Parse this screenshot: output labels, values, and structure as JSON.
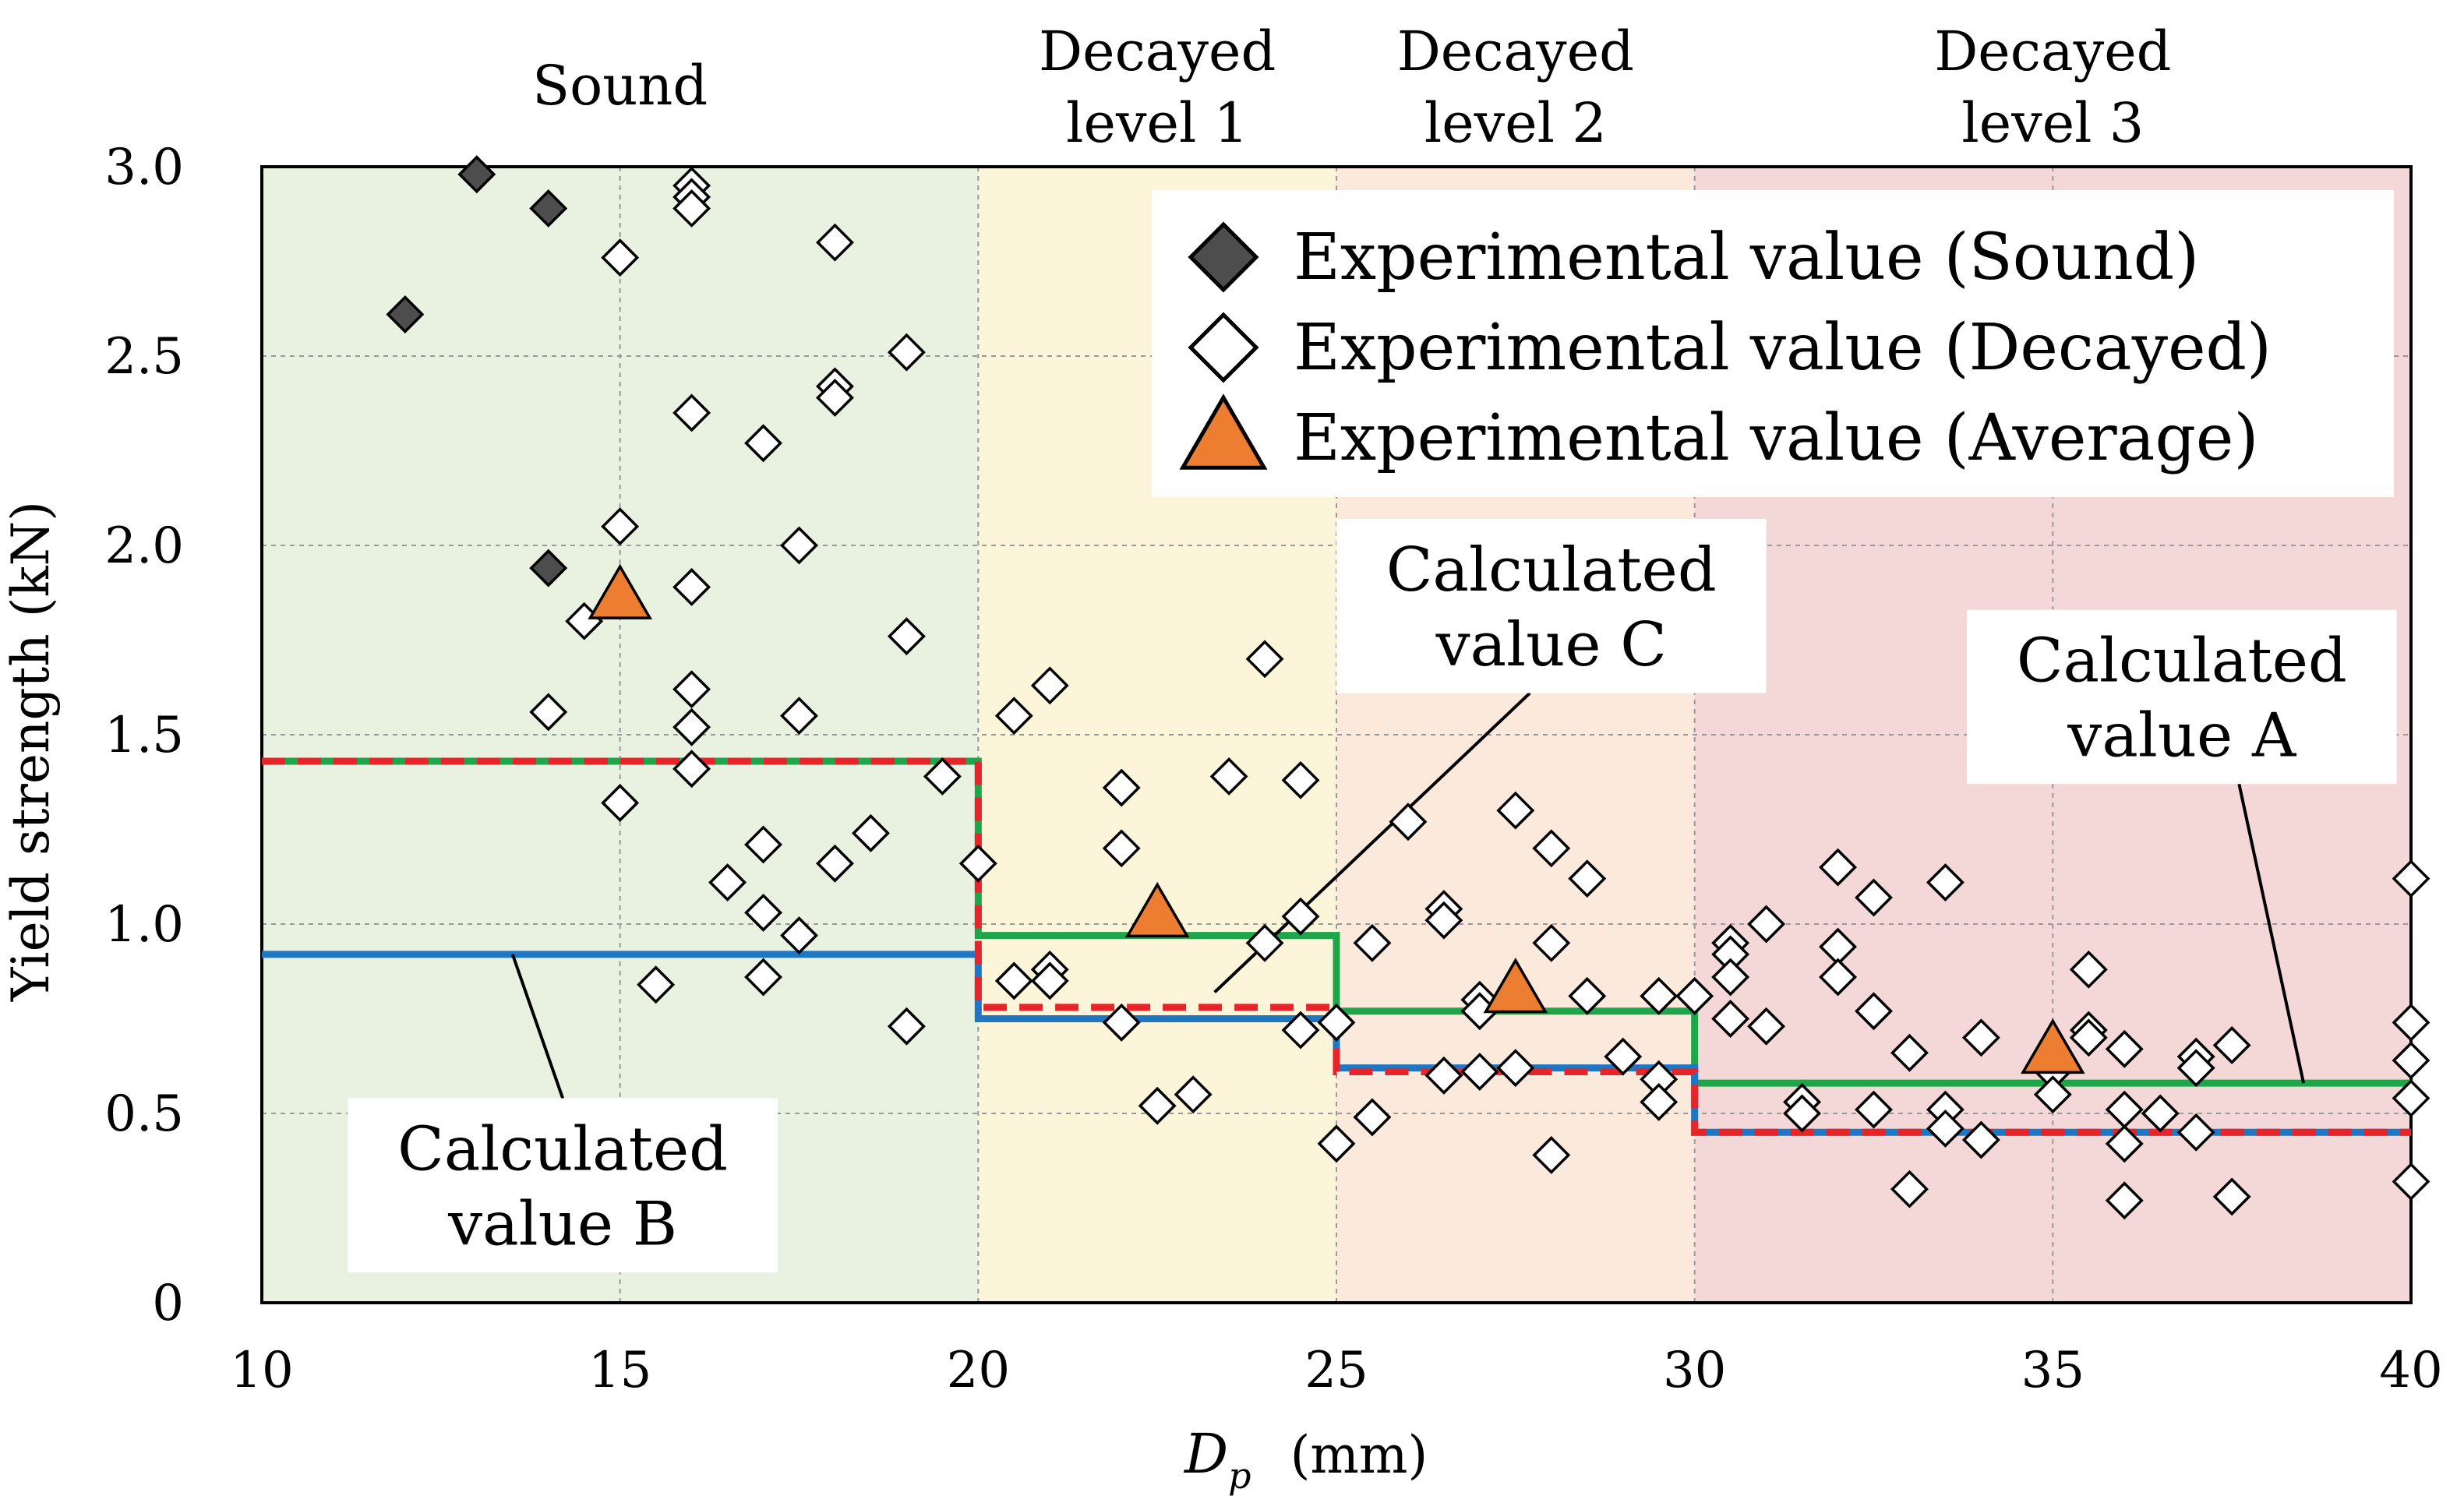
{
  "chart_data": {
    "type": "scatter",
    "xlabel_main": "D",
    "xlabel_sub": "p",
    "xlabel_unit": "(mm)",
    "ylabel": "Yield strength (kN)",
    "xlim": [
      10,
      40
    ],
    "ylim": [
      0,
      3.0
    ],
    "x_ticks": [
      "10",
      "15",
      "20",
      "25",
      "30",
      "35",
      "40"
    ],
    "y_ticks": [
      "0",
      "0.5",
      "1.0",
      "1.5",
      "2.0",
      "2.5",
      "3.0"
    ],
    "regions": [
      {
        "from": 10,
        "to": 20,
        "label": [
          "Sound"
        ],
        "color": "#e9f1e1"
      },
      {
        "from": 20,
        "to": 25,
        "label": [
          "Decayed",
          "level 1"
        ],
        "color": "#fdf5d9"
      },
      {
        "from": 25,
        "to": 30,
        "label": [
          "Decayed",
          "level 2"
        ],
        "color": "#fbe9dc"
      },
      {
        "from": 30,
        "to": 40,
        "label": [
          "Decayed",
          "level 3"
        ],
        "color": "#f4d8d8"
      }
    ],
    "legend": [
      {
        "name": "Experimental value (Sound)",
        "marker": "diamond-filled"
      },
      {
        "name": "Experimental value (Decayed)",
        "marker": "diamond-open"
      },
      {
        "name": "Experimental value (Average)",
        "marker": "triangle"
      }
    ],
    "series_sound": [
      {
        "x": 12,
        "y": 2.61
      },
      {
        "x": 13,
        "y": 2.98
      },
      {
        "x": 14,
        "y": 2.89
      },
      {
        "x": 14,
        "y": 1.94
      }
    ],
    "series_decayed": [
      {
        "x": 14,
        "y": 1.56
      },
      {
        "x": 14.5,
        "y": 1.8
      },
      {
        "x": 15,
        "y": 2.76
      },
      {
        "x": 15,
        "y": 2.05
      },
      {
        "x": 15,
        "y": 1.32
      },
      {
        "x": 15.5,
        "y": 0.84
      },
      {
        "x": 16,
        "y": 2.95
      },
      {
        "x": 16,
        "y": 2.92
      },
      {
        "x": 16,
        "y": 2.89
      },
      {
        "x": 16,
        "y": 2.35
      },
      {
        "x": 16,
        "y": 1.89
      },
      {
        "x": 16,
        "y": 1.62
      },
      {
        "x": 16,
        "y": 1.52
      },
      {
        "x": 16,
        "y": 1.41
      },
      {
        "x": 16.5,
        "y": 1.11
      },
      {
        "x": 17,
        "y": 2.27
      },
      {
        "x": 17,
        "y": 1.21
      },
      {
        "x": 17,
        "y": 1.03
      },
      {
        "x": 17,
        "y": 0.86
      },
      {
        "x": 17.5,
        "y": 2.0
      },
      {
        "x": 17.5,
        "y": 1.55
      },
      {
        "x": 17.5,
        "y": 0.97
      },
      {
        "x": 18,
        "y": 2.8
      },
      {
        "x": 18,
        "y": 2.42
      },
      {
        "x": 18,
        "y": 2.39
      },
      {
        "x": 18,
        "y": 1.16
      },
      {
        "x": 18.5,
        "y": 1.24
      },
      {
        "x": 19,
        "y": 2.51
      },
      {
        "x": 19,
        "y": 1.76
      },
      {
        "x": 19,
        "y": 0.73
      },
      {
        "x": 19.5,
        "y": 1.39
      },
      {
        "x": 20,
        "y": 1.16
      },
      {
        "x": 20.5,
        "y": 1.55
      },
      {
        "x": 20.5,
        "y": 0.85
      },
      {
        "x": 21,
        "y": 1.63
      },
      {
        "x": 21,
        "y": 0.88
      },
      {
        "x": 21,
        "y": 0.85
      },
      {
        "x": 22,
        "y": 1.36
      },
      {
        "x": 22,
        "y": 1.2
      },
      {
        "x": 22,
        "y": 0.74
      },
      {
        "x": 22.5,
        "y": 0.52
      },
      {
        "x": 23,
        "y": 0.55
      },
      {
        "x": 23.5,
        "y": 1.39
      },
      {
        "x": 24,
        "y": 1.7
      },
      {
        "x": 24,
        "y": 0.95
      },
      {
        "x": 24.5,
        "y": 1.38
      },
      {
        "x": 24.5,
        "y": 1.02
      },
      {
        "x": 24.5,
        "y": 0.72
      },
      {
        "x": 25,
        "y": 0.74
      },
      {
        "x": 25,
        "y": 0.42
      },
      {
        "x": 25.5,
        "y": 0.95
      },
      {
        "x": 25.5,
        "y": 0.49
      },
      {
        "x": 26,
        "y": 1.27
      },
      {
        "x": 26.5,
        "y": 1.04
      },
      {
        "x": 26.5,
        "y": 1.01
      },
      {
        "x": 26.5,
        "y": 0.6
      },
      {
        "x": 27,
        "y": 0.8
      },
      {
        "x": 27,
        "y": 0.77
      },
      {
        "x": 27,
        "y": 0.61
      },
      {
        "x": 27.5,
        "y": 1.3
      },
      {
        "x": 27.5,
        "y": 0.62
      },
      {
        "x": 28,
        "y": 1.2
      },
      {
        "x": 28,
        "y": 0.95
      },
      {
        "x": 28,
        "y": 0.39
      },
      {
        "x": 28.5,
        "y": 1.12
      },
      {
        "x": 28.5,
        "y": 0.81
      },
      {
        "x": 29,
        "y": 0.65
      },
      {
        "x": 29.5,
        "y": 0.81
      },
      {
        "x": 29.5,
        "y": 0.59
      },
      {
        "x": 29.5,
        "y": 0.53
      },
      {
        "x": 30,
        "y": 0.81
      },
      {
        "x": 30.5,
        "y": 0.95
      },
      {
        "x": 30.5,
        "y": 0.92
      },
      {
        "x": 30.5,
        "y": 0.86
      },
      {
        "x": 30.5,
        "y": 0.75
      },
      {
        "x": 31,
        "y": 1.0
      },
      {
        "x": 31,
        "y": 0.73
      },
      {
        "x": 31.5,
        "y": 0.53
      },
      {
        "x": 31.5,
        "y": 0.5
      },
      {
        "x": 32,
        "y": 1.15
      },
      {
        "x": 32,
        "y": 0.94
      },
      {
        "x": 32,
        "y": 0.86
      },
      {
        "x": 32.5,
        "y": 1.07
      },
      {
        "x": 32.5,
        "y": 0.77
      },
      {
        "x": 32.5,
        "y": 0.51
      },
      {
        "x": 33,
        "y": 0.66
      },
      {
        "x": 33,
        "y": 0.3
      },
      {
        "x": 33.5,
        "y": 1.11
      },
      {
        "x": 33.5,
        "y": 0.51
      },
      {
        "x": 33.5,
        "y": 0.46
      },
      {
        "x": 34,
        "y": 0.7
      },
      {
        "x": 34,
        "y": 0.43
      },
      {
        "x": 35,
        "y": 0.61
      },
      {
        "x": 35,
        "y": 0.55
      },
      {
        "x": 35.5,
        "y": 0.88
      },
      {
        "x": 35.5,
        "y": 0.72
      },
      {
        "x": 35.5,
        "y": 0.7
      },
      {
        "x": 36,
        "y": 0.67
      },
      {
        "x": 36,
        "y": 0.51
      },
      {
        "x": 36,
        "y": 0.42
      },
      {
        "x": 36,
        "y": 0.27
      },
      {
        "x": 36.5,
        "y": 0.5
      },
      {
        "x": 37,
        "y": 0.65
      },
      {
        "x": 37,
        "y": 0.62
      },
      {
        "x": 37,
        "y": 0.45
      },
      {
        "x": 37.5,
        "y": 0.68
      },
      {
        "x": 37.5,
        "y": 0.28
      },
      {
        "x": 40,
        "y": 1.12
      },
      {
        "x": 40,
        "y": 0.74
      },
      {
        "x": 40,
        "y": 0.64
      },
      {
        "x": 40,
        "y": 0.54
      },
      {
        "x": 40,
        "y": 0.32
      }
    ],
    "series_average": [
      {
        "x": 15,
        "y": 1.86
      },
      {
        "x": 22.5,
        "y": 1.02
      },
      {
        "x": 27.5,
        "y": 0.82
      },
      {
        "x": 35,
        "y": 0.66
      }
    ],
    "calculated_lines": [
      {
        "name": "Calculated value A",
        "color": "#1fa64a",
        "dash": false,
        "steps": [
          {
            "from": 10,
            "to": 20,
            "y": 1.43
          },
          {
            "from": 20,
            "to": 25,
            "y": 0.97
          },
          {
            "from": 25,
            "to": 30,
            "y": 0.77
          },
          {
            "from": 30,
            "to": 40,
            "y": 0.58
          }
        ]
      },
      {
        "name": "Calculated value B",
        "color": "#1f77c4",
        "dash": false,
        "steps": [
          {
            "from": 10,
            "to": 20,
            "y": 0.92
          },
          {
            "from": 20,
            "to": 25,
            "y": 0.75
          },
          {
            "from": 25,
            "to": 30,
            "y": 0.62
          },
          {
            "from": 30,
            "to": 40,
            "y": 0.45
          }
        ]
      },
      {
        "name": "Calculated value C",
        "color": "#e8242b",
        "dash": true,
        "steps": [
          {
            "from": 10,
            "to": 20,
            "y": 1.43
          },
          {
            "from": 20,
            "to": 25,
            "y": 0.78
          },
          {
            "from": 25,
            "to": 30,
            "y": 0.61
          },
          {
            "from": 30,
            "to": 40,
            "y": 0.45
          }
        ]
      }
    ],
    "callouts": [
      {
        "lines": [
          "Calculated",
          "value C"
        ],
        "box": {
          "x1": 25.0,
          "x2": 31.0,
          "y1": 1.61,
          "y2": 2.07
        },
        "arrow_to": {
          "x": 23.3,
          "y": 0.82
        },
        "arrow_from": {
          "x": 27.7,
          "y": 1.61
        }
      },
      {
        "lines": [
          "Calculated",
          "value A"
        ],
        "box": {
          "x1": 33.8,
          "x2": 39.8,
          "y1": 1.37,
          "y2": 1.83
        },
        "arrow_to": {
          "x": 38.5,
          "y": 0.58
        },
        "arrow_from": {
          "x": 37.6,
          "y": 1.37
        }
      },
      {
        "lines": [
          "Calculated",
          "value B"
        ],
        "box": {
          "x1": 11.2,
          "x2": 17.2,
          "y1": 0.08,
          "y2": 0.54
        },
        "arrow_to": {
          "x": 13.5,
          "y": 0.92
        },
        "arrow_from": {
          "x": 14.2,
          "y": 0.54
        }
      }
    ]
  }
}
